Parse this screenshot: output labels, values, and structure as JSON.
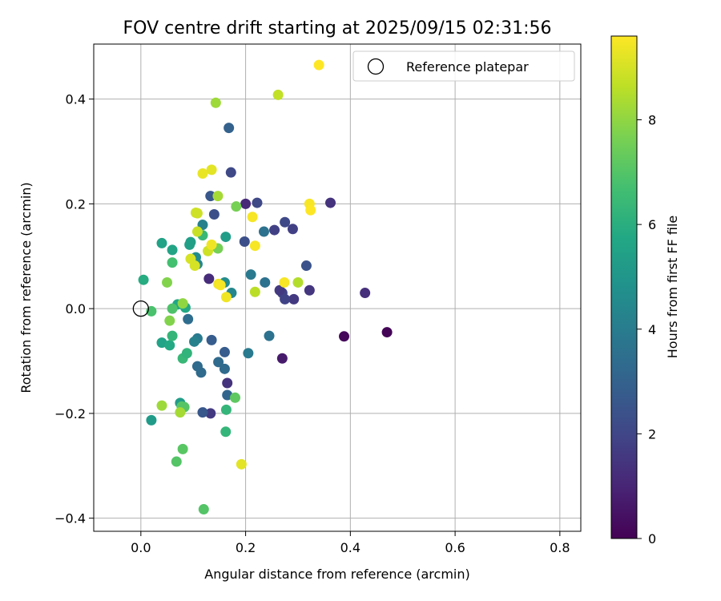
{
  "chart_data": {
    "type": "scatter",
    "title": "FOV centre drift starting at 2025/09/15 02:31:56",
    "xlabel": "Angular distance from reference (arcmin)",
    "ylabel": "Rotation from reference (arcmin)",
    "xlim": [
      -0.09,
      0.84
    ],
    "ylim": [
      -0.425,
      0.505
    ],
    "xticks": [
      0.0,
      0.2,
      0.4,
      0.6,
      0.8
    ],
    "xtick_labels": [
      "0.0",
      "0.2",
      "0.4",
      "0.6",
      "0.8"
    ],
    "yticks": [
      -0.4,
      -0.2,
      0.0,
      0.2,
      0.4
    ],
    "ytick_labels": [
      "−0.4",
      "−0.2",
      "0.0",
      "0.2",
      "0.4"
    ],
    "grid": true,
    "legend": {
      "placement": "top-right",
      "entries": [
        "Reference platepar"
      ]
    },
    "reference_point": {
      "x": 0.0,
      "y": 0.0
    },
    "colorbar": {
      "label": "Hours from first FF file",
      "colormap": "viridis",
      "range": [
        0,
        9.6
      ],
      "ticks": [
        0,
        2,
        4,
        6,
        8
      ],
      "tick_labels": [
        "0",
        "2",
        "4",
        "6",
        "8"
      ]
    },
    "points": [
      [
        0.47,
        -0.045,
        0.1
      ],
      [
        0.388,
        -0.053,
        0.2
      ],
      [
        0.27,
        -0.095,
        0.7
      ],
      [
        0.428,
        0.03,
        1.3
      ],
      [
        0.362,
        0.202,
        1.4
      ],
      [
        0.2,
        0.2,
        1.1
      ],
      [
        0.165,
        -0.142,
        1.4
      ],
      [
        0.13,
        0.057,
        1.2
      ],
      [
        0.133,
        -0.2,
        1.6
      ],
      [
        0.322,
        0.035,
        1.5
      ],
      [
        0.292,
        0.018,
        1.6
      ],
      [
        0.275,
        0.018,
        1.9
      ],
      [
        0.27,
        0.03,
        1.9
      ],
      [
        0.265,
        0.035,
        1.6
      ],
      [
        0.255,
        0.15,
        1.8
      ],
      [
        0.29,
        0.152,
        1.8
      ],
      [
        0.275,
        0.165,
        2.1
      ],
      [
        0.222,
        0.202,
        2.1
      ],
      [
        0.172,
        0.26,
        2.1
      ],
      [
        0.198,
        0.128,
        2.3
      ],
      [
        0.14,
        0.18,
        2.3
      ],
      [
        0.316,
        0.082,
        2.4
      ],
      [
        0.133,
        0.215,
        2.6
      ],
      [
        0.118,
        -0.198,
        2.6
      ],
      [
        0.135,
        -0.06,
        2.8
      ],
      [
        0.16,
        -0.083,
        2.8
      ],
      [
        0.168,
        0.345,
        3.0
      ],
      [
        0.165,
        -0.165,
        3.1
      ],
      [
        0.148,
        -0.102,
        3.3
      ],
      [
        0.16,
        -0.115,
        3.3
      ],
      [
        0.115,
        -0.122,
        3.3
      ],
      [
        0.108,
        -0.11,
        3.3
      ],
      [
        0.09,
        -0.02,
        3.4
      ],
      [
        0.245,
        -0.052,
        3.6
      ],
      [
        0.237,
        0.05,
        3.6
      ],
      [
        0.235,
        0.147,
        3.6
      ],
      [
        0.21,
        0.065,
        3.9
      ],
      [
        0.205,
        -0.085,
        3.9
      ],
      [
        0.108,
        -0.057,
        3.9
      ],
      [
        0.102,
        -0.063,
        4.2
      ],
      [
        0.118,
        0.16,
        4.2
      ],
      [
        0.173,
        0.03,
        4.4
      ],
      [
        0.108,
        0.085,
        4.4
      ],
      [
        0.105,
        0.098,
        4.6
      ],
      [
        0.16,
        0.05,
        4.6
      ],
      [
        0.162,
        0.137,
        5.3
      ],
      [
        0.02,
        -0.213,
        5.2
      ],
      [
        0.075,
        -0.18,
        5.3
      ],
      [
        0.095,
        0.127,
        5.4
      ],
      [
        0.093,
        0.122,
        5.4
      ],
      [
        0.06,
        0.112,
        5.6
      ],
      [
        0.04,
        0.125,
        5.5
      ],
      [
        0.07,
        0.008,
        5.7
      ],
      [
        0.085,
        0.002,
        5.8
      ],
      [
        0.04,
        -0.065,
        5.5
      ],
      [
        0.055,
        -0.07,
        5.8
      ],
      [
        0.06,
        -0.052,
        6.3
      ],
      [
        0.08,
        -0.095,
        6.4
      ],
      [
        0.088,
        -0.085,
        6.2
      ],
      [
        0.005,
        0.055,
        5.9
      ],
      [
        0.118,
        0.14,
        6.4
      ],
      [
        0.162,
        -0.235,
        6.3
      ],
      [
        0.163,
        -0.193,
        6.3
      ],
      [
        0.06,
        0.088,
        6.7
      ],
      [
        0.02,
        -0.005,
        6.8
      ],
      [
        0.06,
        0.0,
        6.9
      ],
      [
        0.078,
        -0.187,
        7.1
      ],
      [
        0.083,
        -0.188,
        7.0
      ],
      [
        0.068,
        -0.292,
        7.0
      ],
      [
        0.08,
        -0.268,
        7.1
      ],
      [
        0.12,
        -0.383,
        7.0
      ],
      [
        0.18,
        -0.17,
        7.2
      ],
      [
        0.182,
        0.195,
        7.6
      ],
      [
        0.147,
        0.115,
        7.6
      ],
      [
        0.05,
        0.05,
        7.8
      ],
      [
        0.055,
        -0.023,
        7.8
      ],
      [
        0.08,
        0.01,
        8.0
      ],
      [
        0.04,
        -0.185,
        8.2
      ],
      [
        0.075,
        -0.198,
        8.3
      ],
      [
        0.143,
        0.393,
        8.2
      ],
      [
        0.147,
        0.215,
        8.3
      ],
      [
        0.218,
        0.032,
        8.6
      ],
      [
        0.3,
        0.05,
        8.5
      ],
      [
        0.262,
        0.408,
        8.7
      ],
      [
        0.108,
        0.147,
        8.8
      ],
      [
        0.105,
        0.183,
        8.9
      ],
      [
        0.108,
        0.182,
        8.9
      ],
      [
        0.128,
        0.11,
        8.9
      ],
      [
        0.095,
        0.095,
        9.0
      ],
      [
        0.103,
        0.082,
        9.0
      ],
      [
        0.192,
        -0.297,
        9.2
      ],
      [
        0.135,
        0.265,
        9.2
      ],
      [
        0.118,
        0.258,
        9.3
      ],
      [
        0.135,
        0.122,
        9.4
      ],
      [
        0.148,
        0.047,
        9.4
      ],
      [
        0.163,
        0.022,
        9.4
      ],
      [
        0.152,
        0.045,
        9.5
      ],
      [
        0.213,
        0.175,
        9.5
      ],
      [
        0.218,
        0.12,
        9.5
      ],
      [
        0.274,
        0.05,
        9.5
      ],
      [
        0.322,
        0.2,
        9.5
      ],
      [
        0.324,
        0.188,
        9.6
      ],
      [
        0.34,
        0.465,
        9.6
      ]
    ]
  }
}
